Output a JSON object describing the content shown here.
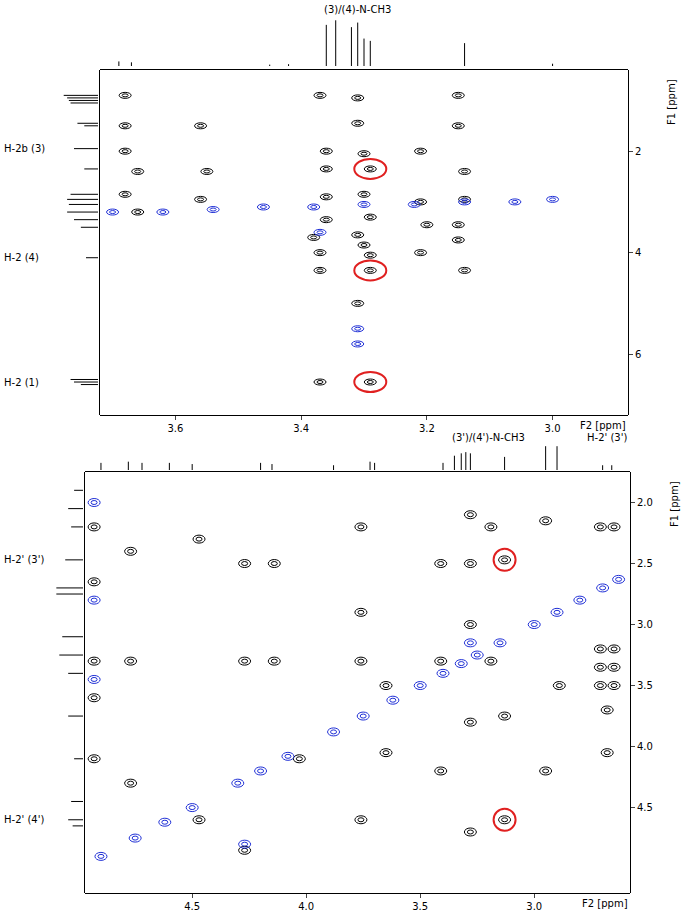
{
  "chart_data": [
    {
      "type": "scatter",
      "x_label": "F2 [ppm]",
      "y_label": "F1 [ppm]",
      "xlim": [
        3.72,
        2.88
      ],
      "ylim": [
        7.2,
        0.4
      ],
      "xticks": [
        3.6,
        3.4,
        3.2,
        {
          "value": 3.0,
          "label": "3.0"
        }
      ],
      "yticks": [
        2,
        4,
        6
      ],
      "series": [
        {
          "color": "#000000",
          "x": [
            3.68,
            3.37,
            3.31,
            3.15,
            3.68,
            3.56,
            3.31,
            3.15,
            3.68,
            3.36,
            3.3,
            3.21,
            3.66,
            3.55,
            3.36,
            3.29,
            3.14,
            3.68,
            3.56,
            3.36,
            3.3,
            3.21,
            3.14,
            3.66,
            3.36,
            3.29,
            3.2,
            3.15,
            3.38,
            3.31,
            3.3,
            3.15,
            3.37,
            3.29,
            3.21,
            3.37,
            3.29,
            3.14,
            3.31,
            3.37,
            3.29
          ],
          "y": [
            0.9,
            0.9,
            0.95,
            0.9,
            1.5,
            1.5,
            1.45,
            1.5,
            2.0,
            2.0,
            2.05,
            2.0,
            2.4,
            2.4,
            2.35,
            2.35,
            2.4,
            2.85,
            2.95,
            2.9,
            2.85,
            3.0,
            2.95,
            3.2,
            3.35,
            3.3,
            3.45,
            3.45,
            3.7,
            3.65,
            3.85,
            3.75,
            4.0,
            4.05,
            4.0,
            4.35,
            4.35,
            4.35,
            5.0,
            6.55,
            6.55
          ]
        },
        {
          "color": "#1f2fd6",
          "x": [
            3.7,
            3.62,
            3.54,
            3.46,
            3.38,
            3.3,
            3.22,
            3.14,
            3.06,
            3.0,
            3.31,
            3.31,
            3.37
          ],
          "y": [
            3.2,
            3.2,
            3.15,
            3.1,
            3.1,
            3.05,
            3.05,
            3.0,
            3.0,
            2.95,
            5.5,
            5.8,
            3.6
          ]
        }
      ],
      "highlights": {
        "color": "#e02020",
        "x": [
          3.29,
          3.29,
          3.29
        ],
        "y": [
          2.35,
          4.35,
          6.55
        ]
      },
      "f2_projection": {
        "x": [
          3.69,
          3.67,
          3.45,
          3.42,
          3.36,
          3.345,
          3.32,
          3.31,
          3.3,
          3.29,
          3.14,
          3.0
        ],
        "values": [
          0.1,
          0.08,
          0.03,
          0.04,
          0.9,
          1.0,
          0.85,
          0.95,
          0.6,
          0.55,
          0.5,
          0.05
        ]
      },
      "f1_projection": {
        "y": [
          0.9,
          0.95,
          1.0,
          1.05,
          1.45,
          1.5,
          1.95,
          2.35,
          2.85,
          2.95,
          3.05,
          3.2,
          3.35,
          3.5,
          4.1,
          6.5,
          6.55,
          6.6
        ],
        "values": [
          1.0,
          0.9,
          0.85,
          0.8,
          0.6,
          0.4,
          0.7,
          0.4,
          0.8,
          0.9,
          0.85,
          0.9,
          0.7,
          0.5,
          0.35,
          0.8,
          0.7,
          0.5
        ]
      },
      "f1_labels": [
        {
          "text": "H-2b (3)",
          "y": 1.95
        },
        {
          "text": "H-2 (4)",
          "y": 4.1
        },
        {
          "text": "H-2 (1)",
          "y": 6.55
        }
      ],
      "f2_labels": [
        {
          "text": "(3)/(4)-N-CH3",
          "x": 3.31
        }
      ]
    },
    {
      "type": "scatter",
      "x_label": "F2 [ppm]",
      "y_label": "F1 [ppm]",
      "xlim": [
        4.97,
        2.58
      ],
      "ylim": [
        5.2,
        1.75
      ],
      "xticks": [
        4.5,
        {
          "value": 4.0,
          "label": "4.0"
        },
        3.5,
        {
          "value": 3.0,
          "label": "3.0"
        }
      ],
      "yticks": [
        {
          "value": 2.0,
          "label": "2.0"
        },
        2.5,
        {
          "value": 3.0,
          "label": "3.0"
        },
        3.5,
        {
          "value": 4.0,
          "label": "4.0"
        },
        4.5
      ],
      "series": [
        {
          "color": "#000000",
          "x": [
            4.93,
            4.93,
            4.93,
            4.93,
            4.93,
            4.77,
            4.77,
            4.77,
            4.47,
            4.47,
            4.27,
            4.14,
            4.27,
            4.14,
            4.03,
            4.27,
            3.76,
            3.76,
            3.76,
            3.65,
            3.65,
            3.76,
            3.41,
            3.41,
            3.41,
            3.28,
            3.28,
            3.28,
            3.28,
            3.28,
            3.19,
            3.19,
            3.13,
            3.13,
            3.13,
            2.95,
            2.89,
            2.95,
            2.71,
            2.65,
            2.71,
            2.65,
            2.71,
            2.65,
            2.68,
            2.68,
            2.71,
            2.65
          ],
          "y": [
            2.2,
            2.65,
            3.3,
            3.6,
            4.1,
            2.4,
            3.3,
            4.3,
            2.3,
            4.6,
            2.5,
            2.5,
            3.3,
            3.3,
            4.1,
            4.85,
            2.2,
            2.9,
            3.3,
            3.5,
            4.05,
            4.6,
            2.5,
            3.3,
            4.2,
            2.1,
            2.5,
            3.0,
            3.8,
            4.7,
            2.2,
            3.3,
            2.47,
            3.75,
            4.6,
            2.15,
            3.5,
            4.2,
            3.2,
            3.2,
            3.35,
            3.35,
            3.5,
            3.5,
            3.7,
            4.05,
            2.2,
            2.2
          ]
        },
        {
          "color": "#1f2fd6",
          "x": [
            4.9,
            4.75,
            4.62,
            4.5,
            4.3,
            4.2,
            4.08,
            3.88,
            3.75,
            3.62,
            3.5,
            3.4,
            3.32,
            3.25,
            3.15,
            3.0,
            2.9,
            2.8,
            2.7,
            2.63,
            4.93,
            4.93,
            4.93,
            4.27,
            3.28
          ],
          "y": [
            4.9,
            4.75,
            4.62,
            4.5,
            4.3,
            4.2,
            4.08,
            3.88,
            3.75,
            3.62,
            3.5,
            3.4,
            3.32,
            3.25,
            3.15,
            3.0,
            2.9,
            2.8,
            2.7,
            2.63,
            2.0,
            2.8,
            3.45,
            4.8,
            3.15
          ]
        }
      ],
      "highlights": {
        "color": "#e02020",
        "x": [
          3.13,
          3.13
        ],
        "y": [
          2.47,
          4.6
        ]
      },
      "f2_projection": {
        "x": [
          4.9,
          4.78,
          4.72,
          4.6,
          4.5,
          4.2,
          4.15,
          3.88,
          3.72,
          3.7,
          3.4,
          3.35,
          3.32,
          3.3,
          3.28,
          3.13,
          2.95,
          2.9,
          2.7,
          2.66
        ],
        "values": [
          0.3,
          0.35,
          0.3,
          0.3,
          0.25,
          0.3,
          0.25,
          0.2,
          0.35,
          0.3,
          0.3,
          0.6,
          0.7,
          0.75,
          0.7,
          0.55,
          1.0,
          1.0,
          0.2,
          0.2
        ]
      },
      "f1_projection": {
        "y": [
          1.9,
          2.05,
          2.2,
          2.47,
          2.7,
          2.75,
          3.1,
          3.25,
          3.4,
          3.75,
          4.1,
          4.45,
          4.6,
          4.65
        ],
        "values": [
          0.3,
          0.5,
          0.4,
          0.6,
          0.9,
          0.9,
          0.7,
          0.8,
          0.5,
          0.5,
          0.3,
          0.4,
          0.5,
          0.35
        ]
      },
      "f1_labels": [
        {
          "text": "H-2' (3')",
          "y": 2.47
        },
        {
          "text": "H-2' (4')",
          "y": 4.6
        }
      ],
      "f2_labels": [
        {
          "text": "(3')/(4')-N-CH3",
          "x": 3.2
        },
        {
          "text": "H-2' (3')",
          "x": 2.68
        }
      ]
    }
  ]
}
